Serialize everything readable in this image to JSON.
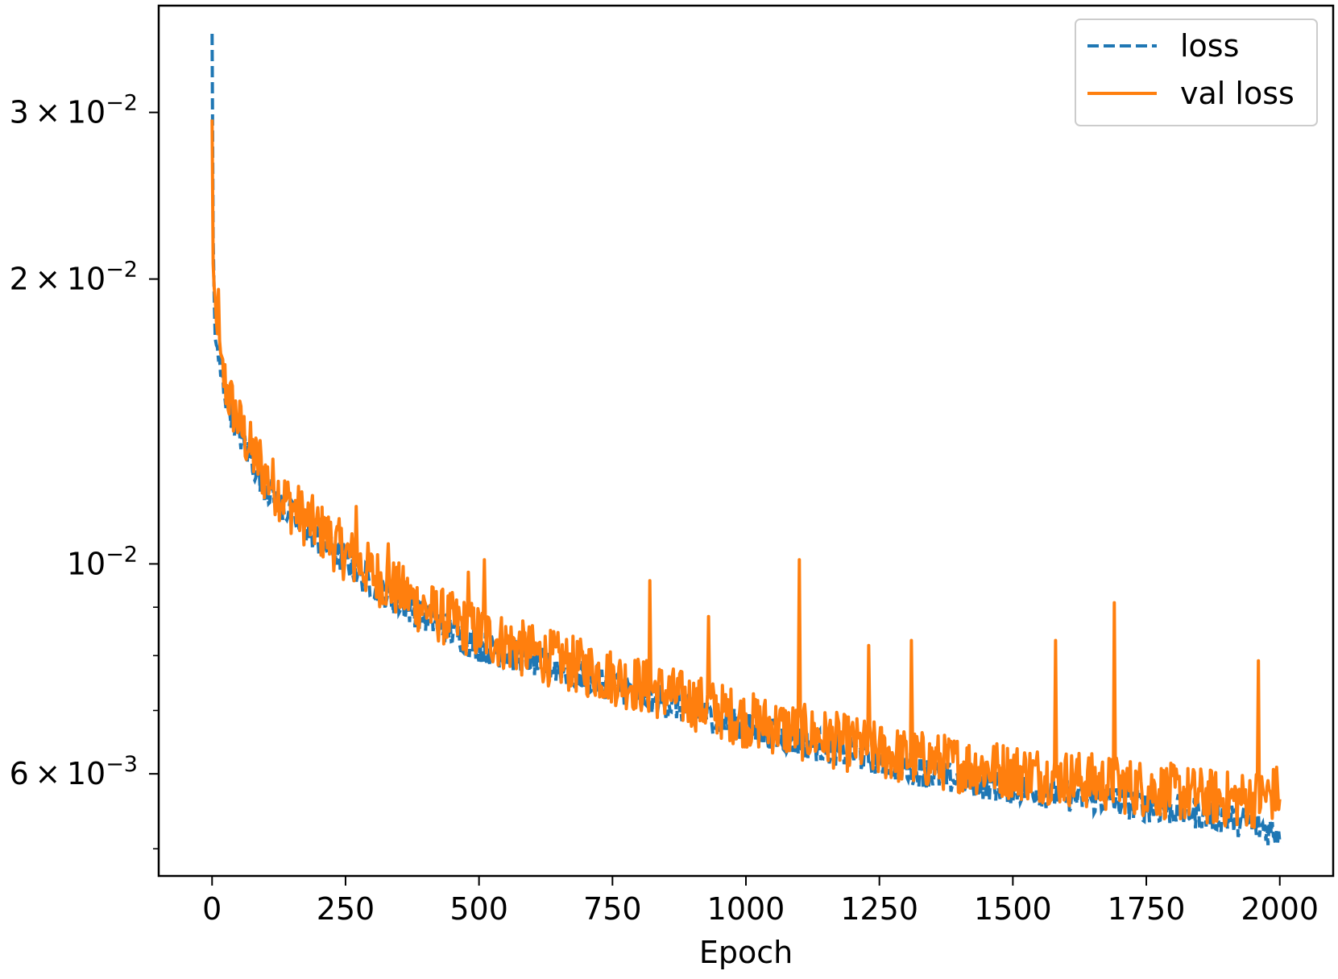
{
  "chart_data": {
    "type": "line",
    "title": "",
    "xlabel": "Epoch",
    "ylabel": "",
    "y_scale": "log",
    "xlim": [
      -100,
      2100
    ],
    "ylim": [
      0.00468,
      0.0389
    ],
    "x_ticks": [
      0,
      250,
      500,
      750,
      1000,
      1250,
      1500,
      1750,
      2000
    ],
    "x_tick_labels": [
      "0",
      "250",
      "500",
      "750",
      "1000",
      "1250",
      "1500",
      "1750",
      "2000"
    ],
    "y_major_ticks": [
      {
        "value": 0.03,
        "mantissa": "3",
        "base": "10",
        "exponent": "−2"
      },
      {
        "value": 0.02,
        "mantissa": "2",
        "base": "10",
        "exponent": "−2"
      },
      {
        "value": 0.01,
        "mantissa": "",
        "base": "10",
        "exponent": "−2"
      },
      {
        "value": 0.006,
        "mantissa": "6",
        "base": "10",
        "exponent": "−3"
      }
    ],
    "y_minor_ticks": [
      0.009,
      0.008,
      0.007,
      0.005
    ],
    "legend_position": "top-right",
    "series": [
      {
        "name": "loss",
        "color": "#1f77b4",
        "style": "dashed",
        "points": [
          [
            0,
            0.0355
          ],
          [
            2,
            0.022
          ],
          [
            5,
            0.0178
          ],
          [
            10,
            0.0165
          ],
          [
            20,
            0.0155
          ],
          [
            30,
            0.0148
          ],
          [
            50,
            0.0138
          ],
          [
            75,
            0.0128
          ],
          [
            100,
            0.0121
          ],
          [
            150,
            0.0112
          ],
          [
            200,
            0.0106
          ],
          [
            250,
            0.0101
          ],
          [
            300,
            0.0095
          ],
          [
            350,
            0.0091
          ],
          [
            400,
            0.0088
          ],
          [
            500,
            0.0082
          ],
          [
            600,
            0.0079
          ],
          [
            700,
            0.0076
          ],
          [
            800,
            0.0073
          ],
          [
            900,
            0.007
          ],
          [
            1000,
            0.0067
          ],
          [
            1100,
            0.0065
          ],
          [
            1200,
            0.0063
          ],
          [
            1300,
            0.0061
          ],
          [
            1400,
            0.0059
          ],
          [
            1500,
            0.0058
          ],
          [
            1600,
            0.0057
          ],
          [
            1700,
            0.0056
          ],
          [
            1800,
            0.0055
          ],
          [
            1900,
            0.0054
          ],
          [
            1950,
            0.0053
          ],
          [
            2000,
            0.0052
          ]
        ]
      },
      {
        "name": "val loss",
        "color": "#ff7f0e",
        "style": "solid",
        "points": [
          [
            0,
            0.029
          ],
          [
            2,
            0.021
          ],
          [
            5,
            0.0185
          ],
          [
            10,
            0.0172
          ],
          [
            20,
            0.0158
          ],
          [
            30,
            0.015
          ],
          [
            50,
            0.014
          ],
          [
            75,
            0.013
          ],
          [
            100,
            0.0123
          ],
          [
            150,
            0.0114
          ],
          [
            200,
            0.0108
          ],
          [
            250,
            0.0102
          ],
          [
            300,
            0.0097
          ],
          [
            350,
            0.0093
          ],
          [
            400,
            0.0089
          ],
          [
            500,
            0.0084
          ],
          [
            600,
            0.008
          ],
          [
            700,
            0.0077
          ],
          [
            800,
            0.0074
          ],
          [
            900,
            0.0071
          ],
          [
            1000,
            0.0068
          ],
          [
            1100,
            0.0066
          ],
          [
            1200,
            0.0064
          ],
          [
            1300,
            0.0062
          ],
          [
            1400,
            0.0061
          ],
          [
            1500,
            0.006
          ],
          [
            1600,
            0.0059
          ],
          [
            1700,
            0.0058
          ],
          [
            1800,
            0.0057
          ],
          [
            1900,
            0.0056
          ],
          [
            1950,
            0.0056
          ],
          [
            2000,
            0.0057
          ]
        ],
        "spikes": [
          [
            12,
            0.0195
          ],
          [
            45,
            0.0145
          ],
          [
            90,
            0.0135
          ],
          [
            210,
            0.0112
          ],
          [
            270,
            0.0115
          ],
          [
            330,
            0.0105
          ],
          [
            480,
            0.0098
          ],
          [
            510,
            0.0101
          ],
          [
            655,
            0.0092
          ],
          [
            820,
            0.0096
          ],
          [
            930,
            0.0088
          ],
          [
            1100,
            0.0101
          ],
          [
            1230,
            0.0082
          ],
          [
            1310,
            0.0083
          ],
          [
            1580,
            0.0083
          ],
          [
            1690,
            0.0091
          ],
          [
            1805,
            0.0075
          ],
          [
            1935,
            0.008
          ],
          [
            1960,
            0.0079
          ]
        ]
      }
    ]
  }
}
